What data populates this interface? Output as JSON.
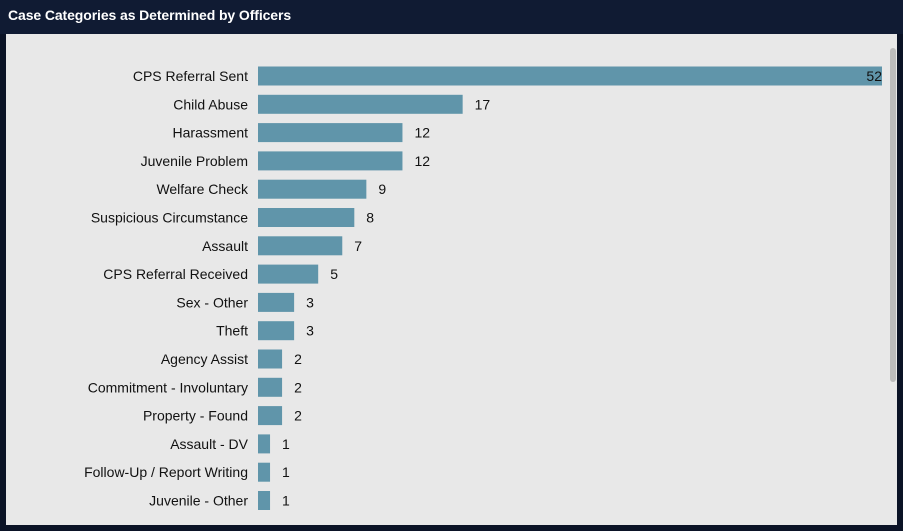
{
  "panel": {
    "title": "Case Categories as Determined by Officers"
  },
  "colors": {
    "header_bg": "#101b33",
    "panel_bg": "#e8e8e8",
    "bar": "#6095aa",
    "text": "#111111",
    "scrollbar": "#bcbcbc"
  },
  "chart_data": {
    "type": "bar",
    "orientation": "horizontal",
    "categories": [
      "CPS Referral Sent",
      "Child Abuse",
      "Harassment",
      "Juvenile Problem",
      "Welfare Check",
      "Suspicious Circumstance",
      "Assault",
      "CPS Referral Received",
      "Sex - Other",
      "Theft",
      "Agency Assist",
      "Commitment - Involuntary",
      "Property - Found",
      "Assault - DV",
      "Follow-Up / Report Writing",
      "Juvenile - Other"
    ],
    "values": [
      52,
      17,
      12,
      12,
      9,
      8,
      7,
      5,
      3,
      3,
      2,
      2,
      2,
      1,
      1,
      1
    ],
    "title": "Case Categories as Determined by Officers",
    "xlabel": "",
    "ylabel": "",
    "xlim": [
      0,
      52
    ],
    "grid": false,
    "data_labels": true
  }
}
